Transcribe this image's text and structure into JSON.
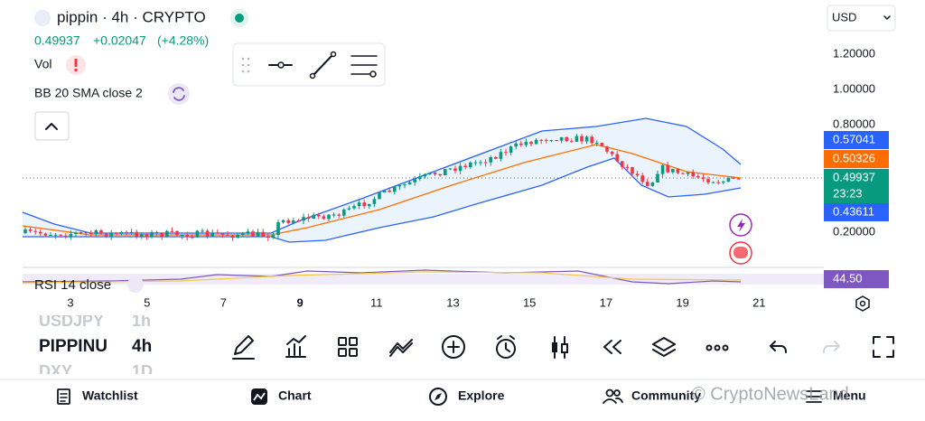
{
  "header": {
    "symbol": "pippin · 4h · CRYPTO",
    "price": "0.49937",
    "change": "+0.02047",
    "change_pct": "(+4.28%)"
  },
  "indicators": {
    "volume": "Vol",
    "bollinger": "BB 20 SMA close 2",
    "rsi": "RSI 14 close"
  },
  "currency": "USD",
  "price_axis": [
    "1.20000",
    "1.00000",
    "0.80000",
    "0.20000"
  ],
  "price_badges": {
    "upper": "0.57041",
    "middle": "0.50326",
    "last": "0.49937",
    "countdown": "23:23",
    "lower": "0.43611",
    "rsi": "44.50"
  },
  "time_axis": [
    "3",
    "5",
    "7",
    "9",
    "11",
    "13",
    "15",
    "17",
    "19",
    "21"
  ],
  "watchlist": [
    {
      "symbol": "USDJPY",
      "interval": "1h"
    },
    {
      "symbol": "PIPPINU",
      "interval": "4h"
    },
    {
      "symbol": "DXY",
      "interval": "1D"
    }
  ],
  "nav": [
    "Watchlist",
    "Chart",
    "Explore",
    "Community",
    "Menu"
  ],
  "watermark": "© CryptoNewsLand"
}
